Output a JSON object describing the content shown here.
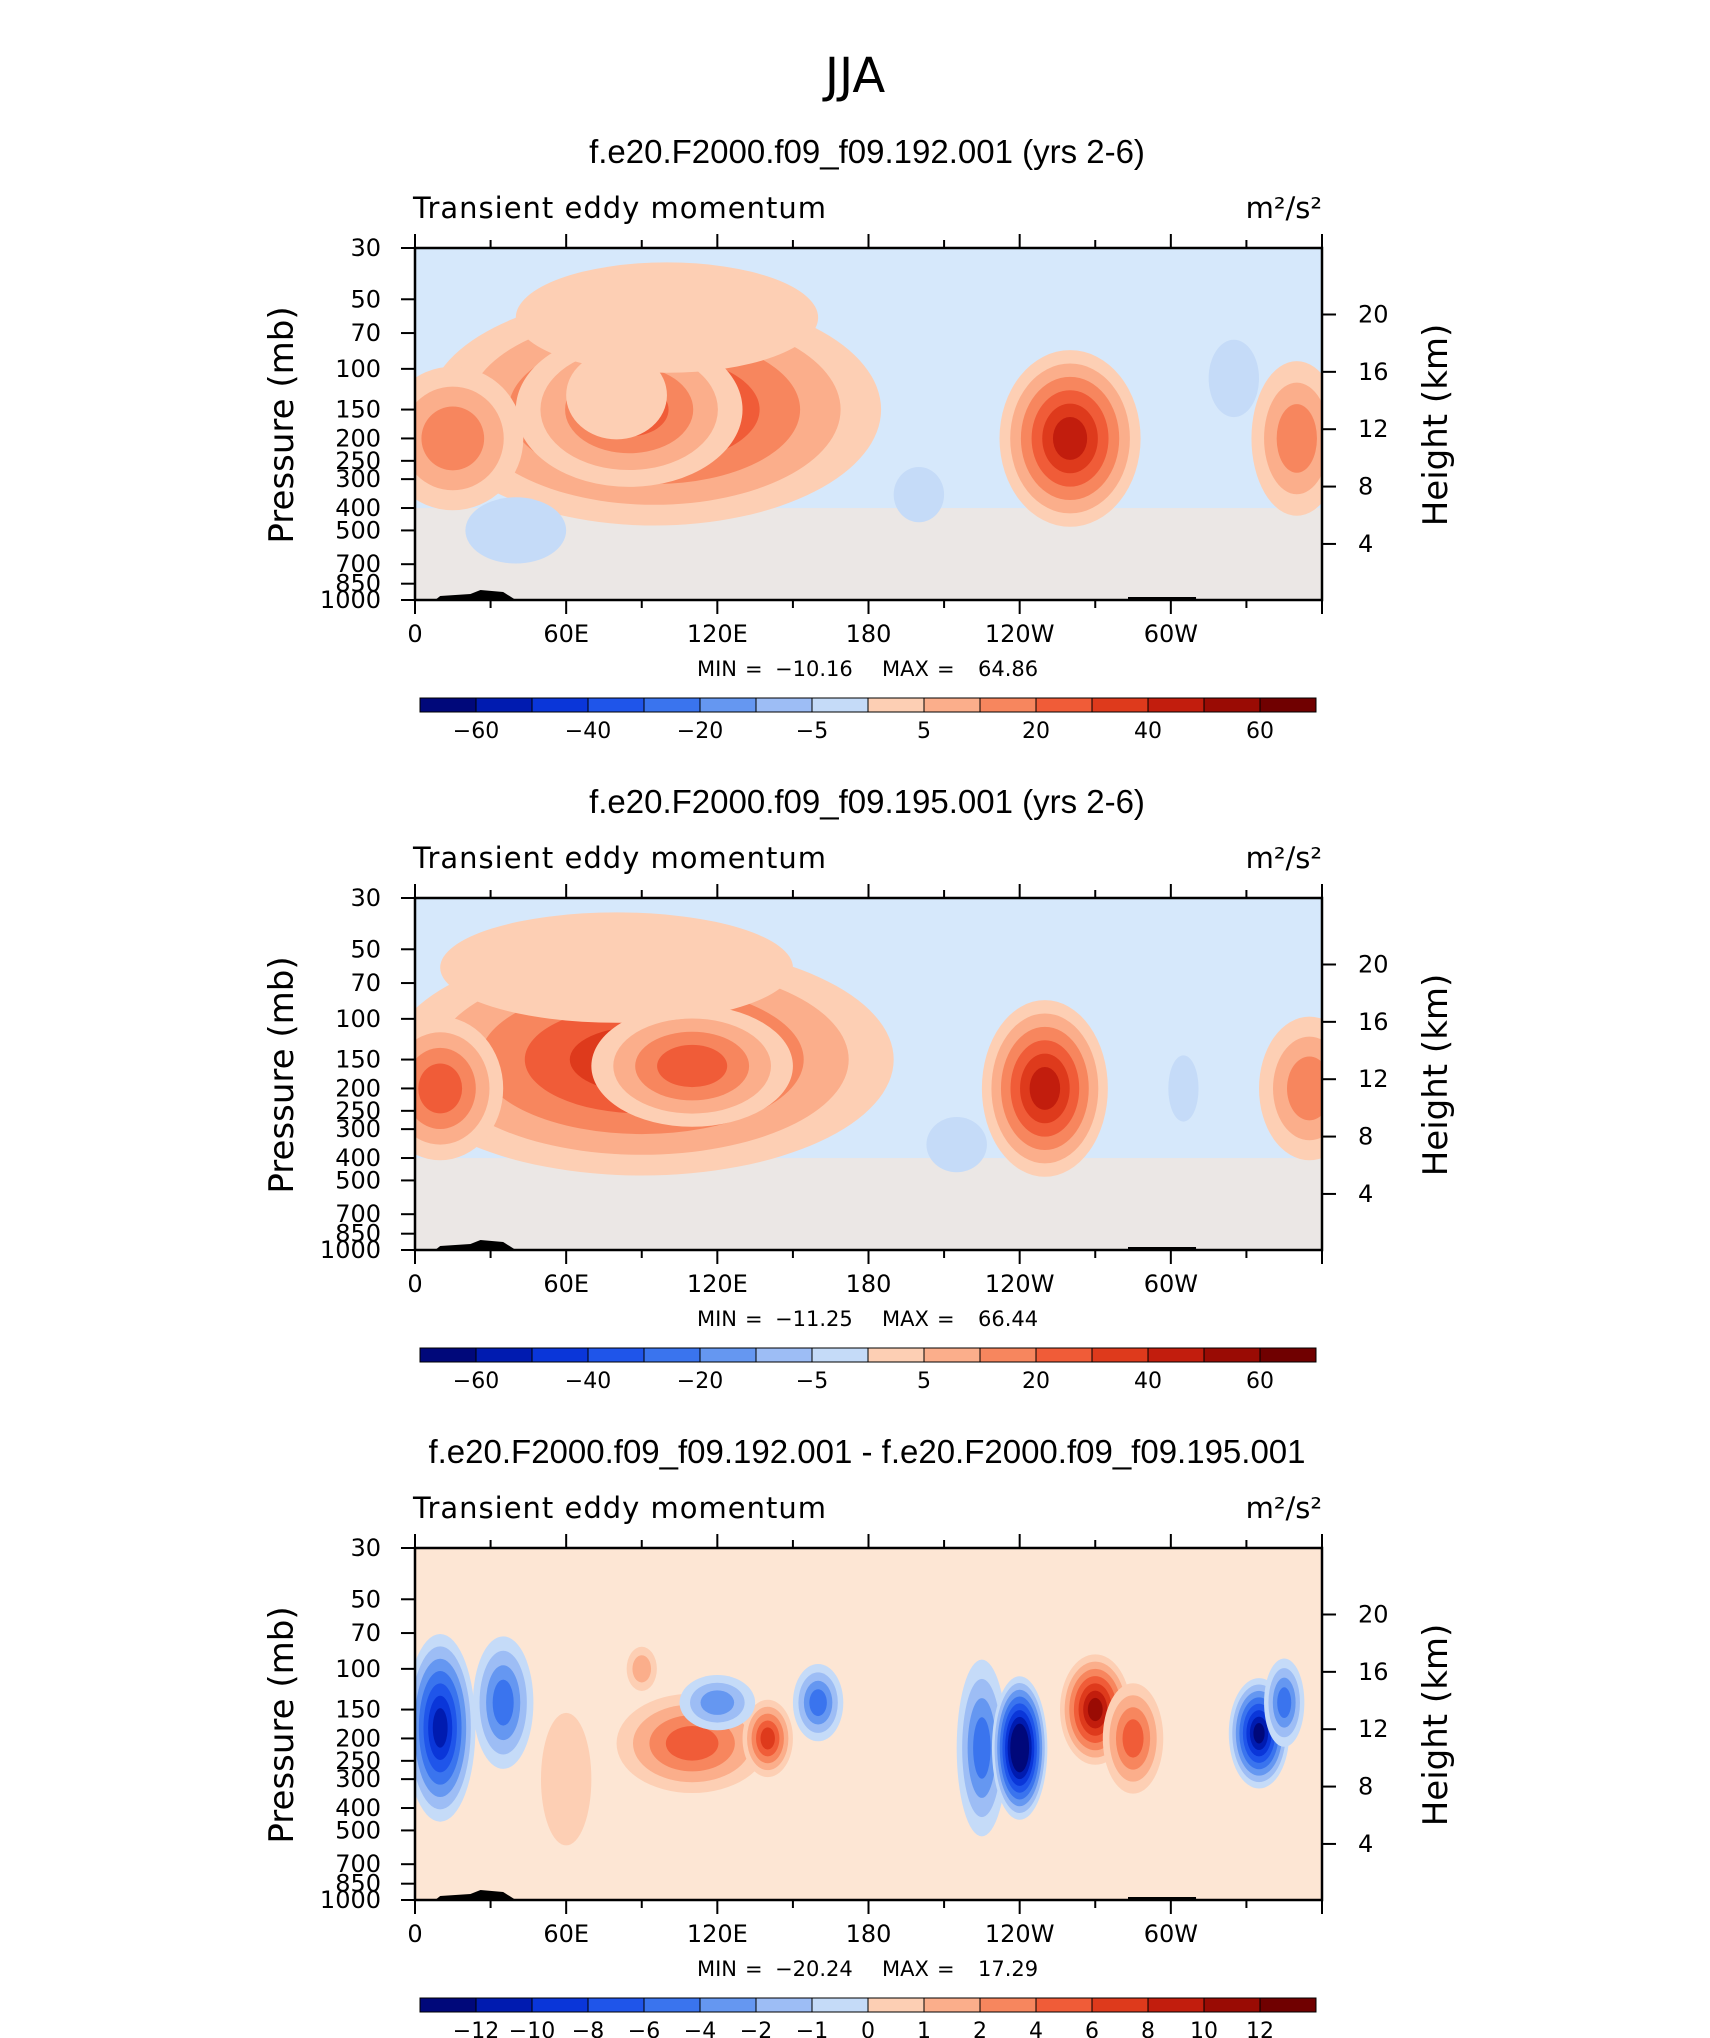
{
  "page_title": "JJA",
  "colors": {
    "ocean_bg": "#d6e8fb",
    "neg": [
      "#00087a",
      "#001bb0",
      "#0a36d9",
      "#1f55ea",
      "#3a74ee",
      "#6597f1",
      "#9dbdf5",
      "#c5dbf8",
      "#d6e8fb"
    ],
    "pos": [
      "#fde6d4",
      "#fdcfb4",
      "#fbae8b",
      "#f7865e",
      "#f05c38",
      "#de3a1c",
      "#c21d0d",
      "#9a0b04",
      "#700000"
    ]
  },
  "chart_data": [
    {
      "type": "heatmap",
      "title": "f.e20.F2000.f09_f09.192.001 (yrs 2-6)",
      "variable_label": "Transient eddy momentum",
      "units_label": "m²/s²",
      "ylabel": "Pressure (mb)",
      "y2label": "Height (km)",
      "y_ticks": [
        "30",
        "50",
        "70",
        "100",
        "150",
        "200",
        "250",
        "300",
        "400",
        "500",
        "700",
        "850",
        "1000"
      ],
      "y2_ticks": [
        "20",
        "16",
        "12",
        "8",
        "4"
      ],
      "x_ticks": [
        "0",
        "60E",
        "120E",
        "180",
        "120W",
        "60W"
      ],
      "min_max": {
        "min_label": "MIN",
        "min": "−10.16",
        "max_label": "MAX",
        "max": "64.86"
      },
      "colorbar_labels": [
        "−60",
        "−40",
        "−20",
        "−5",
        "5",
        "20",
        "40",
        "60"
      ],
      "blobs": [
        {
          "lon": 95,
          "p": 150,
          "rlon": 90,
          "rlev": 2.1,
          "v": 5
        },
        {
          "lon": 85,
          "p": 150,
          "rlon": 45,
          "rlev": 1.4,
          "v": 4
        },
        {
          "lon": 80,
          "p": 130,
          "rlon": 20,
          "rlev": 0.8,
          "v": 1
        },
        {
          "lon": 15,
          "p": 200,
          "rlon": 28,
          "rlev": 1.3,
          "v": 3
        },
        {
          "lon": 260,
          "p": 200,
          "rlon": 28,
          "rlev": 1.6,
          "v": 6
        },
        {
          "lon": 350,
          "p": 200,
          "rlon": 18,
          "rlev": 1.4,
          "v": 3
        },
        {
          "lon": 100,
          "p": 60,
          "rlon": 60,
          "rlev": 1.0,
          "v": 1
        },
        {
          "lon": 40,
          "p": 500,
          "rlon": 20,
          "rlev": 0.6,
          "v": -1
        },
        {
          "lon": 200,
          "p": 350,
          "rlon": 10,
          "rlev": 0.5,
          "v": -1
        },
        {
          "lon": 325,
          "p": 110,
          "rlon": 10,
          "rlev": 0.7,
          "v": -1
        }
      ],
      "levels": [
        -70,
        -60,
        -50,
        -40,
        -30,
        -20,
        -10,
        -5,
        0,
        5,
        10,
        20,
        30,
        40,
        50,
        60,
        70
      ]
    },
    {
      "type": "heatmap",
      "title": "f.e20.F2000.f09_f09.195.001 (yrs 2-6)",
      "variable_label": "Transient eddy momentum",
      "units_label": "m²/s²",
      "ylabel": "Pressure (mb)",
      "y2label": "Height (km)",
      "y_ticks": [
        "30",
        "50",
        "70",
        "100",
        "150",
        "200",
        "250",
        "300",
        "400",
        "500",
        "700",
        "850",
        "1000"
      ],
      "y2_ticks": [
        "20",
        "16",
        "12",
        "8",
        "4"
      ],
      "x_ticks": [
        "0",
        "60E",
        "120E",
        "180",
        "120W",
        "60W"
      ],
      "min_max": {
        "min_label": "MIN",
        "min": "−11.25",
        "max_label": "MAX",
        "max": "66.44"
      },
      "colorbar_labels": [
        "−60",
        "−40",
        "−20",
        "−5",
        "5",
        "20",
        "40",
        "60"
      ],
      "blobs": [
        {
          "lon": 90,
          "p": 150,
          "rlon": 100,
          "rlev": 2.1,
          "v": 5
        },
        {
          "lon": 110,
          "p": 160,
          "rlon": 40,
          "rlev": 1.1,
          "v": 4
        },
        {
          "lon": 10,
          "p": 200,
          "rlon": 25,
          "rlev": 1.3,
          "v": 4
        },
        {
          "lon": 250,
          "p": 200,
          "rlon": 25,
          "rlev": 1.6,
          "v": 6
        },
        {
          "lon": 355,
          "p": 200,
          "rlon": 20,
          "rlev": 1.3,
          "v": 3
        },
        {
          "lon": 80,
          "p": 60,
          "rlon": 70,
          "rlev": 1.0,
          "v": 1
        },
        {
          "lon": 215,
          "p": 350,
          "rlon": 12,
          "rlev": 0.5,
          "v": -1
        },
        {
          "lon": 305,
          "p": 200,
          "rlon": 6,
          "rlev": 0.6,
          "v": -1
        }
      ],
      "levels": [
        -70,
        -60,
        -50,
        -40,
        -30,
        -20,
        -10,
        -5,
        0,
        5,
        10,
        20,
        30,
        40,
        50,
        60,
        70
      ]
    },
    {
      "type": "heatmap",
      "title": "f.e20.F2000.f09_f09.192.001 - f.e20.F2000.f09_f09.195.001",
      "variable_label": "Transient eddy momentum",
      "units_label": "m²/s²",
      "ylabel": "Pressure (mb)",
      "y2label": "Height (km)",
      "y_ticks": [
        "30",
        "50",
        "70",
        "100",
        "150",
        "200",
        "250",
        "300",
        "400",
        "500",
        "700",
        "850",
        "1000"
      ],
      "y2_ticks": [
        "20",
        "16",
        "12",
        "8",
        "4"
      ],
      "x_ticks": [
        "0",
        "60E",
        "120E",
        "180",
        "120W",
        "60W"
      ],
      "min_max": {
        "min_label": "MIN",
        "min": "−20.24",
        "max_label": "MAX",
        "max": "17.29"
      },
      "colorbar_labels": [
        "−12",
        "−10",
        "−8",
        "−6",
        "−4",
        "−2",
        "−1",
        "0",
        "1",
        "2",
        "4",
        "6",
        "8",
        "10",
        "12"
      ],
      "blobs": [
        {
          "lon": 10,
          "p": 180,
          "rlon": 14,
          "rlev": 1.7,
          "v": -7
        },
        {
          "lon": 35,
          "p": 140,
          "rlon": 12,
          "rlev": 1.2,
          "v": -4
        },
        {
          "lon": 110,
          "p": 210,
          "rlon": 30,
          "rlev": 0.9,
          "v": 4
        },
        {
          "lon": 140,
          "p": 200,
          "rlon": 10,
          "rlev": 0.7,
          "v": 5
        },
        {
          "lon": 120,
          "p": 140,
          "rlon": 15,
          "rlev": 0.5,
          "v": -3
        },
        {
          "lon": 160,
          "p": 140,
          "rlon": 10,
          "rlev": 0.7,
          "v": -4
        },
        {
          "lon": 225,
          "p": 220,
          "rlon": 10,
          "rlev": 1.6,
          "v": -4
        },
        {
          "lon": 240,
          "p": 220,
          "rlon": 11,
          "rlev": 1.3,
          "v": -10
        },
        {
          "lon": 270,
          "p": 150,
          "rlon": 14,
          "rlev": 1.0,
          "v": 7
        },
        {
          "lon": 285,
          "p": 200,
          "rlon": 12,
          "rlev": 1.0,
          "v": 4
        },
        {
          "lon": 335,
          "p": 190,
          "rlon": 12,
          "rlev": 1.0,
          "v": -8
        },
        {
          "lon": 345,
          "p": 140,
          "rlon": 8,
          "rlev": 0.8,
          "v": -4
        },
        {
          "lon": 60,
          "p": 300,
          "rlon": 10,
          "rlev": 1.2,
          "v": 1
        },
        {
          "lon": 90,
          "p": 100,
          "rlon": 6,
          "rlev": 0.4,
          "v": 2
        }
      ],
      "levels": [
        -14,
        -12,
        -10,
        -8,
        -6,
        -4,
        -2,
        -1,
        0,
        1,
        2,
        4,
        6,
        8,
        10,
        12,
        14
      ]
    }
  ]
}
